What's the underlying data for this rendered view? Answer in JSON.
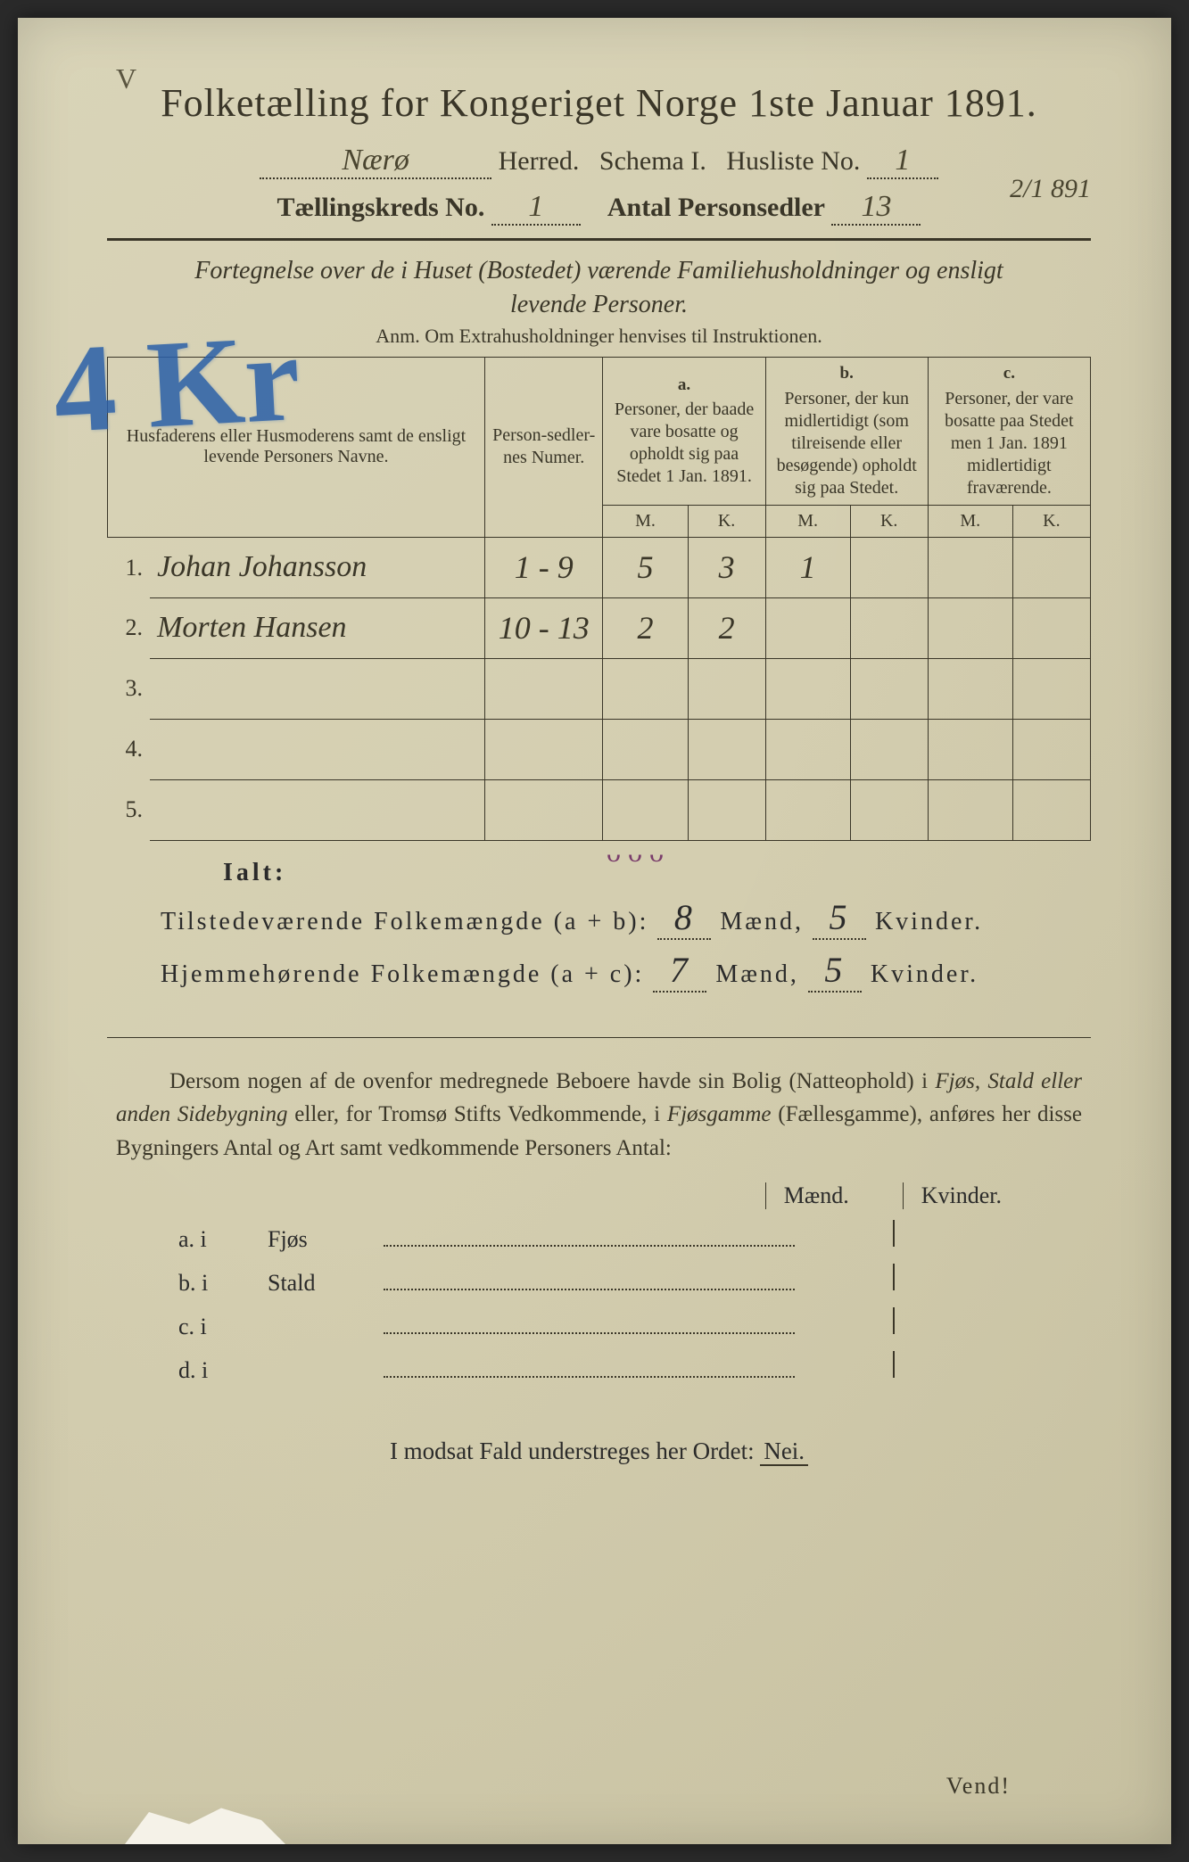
{
  "marks": {
    "v": "V",
    "blue": "4 Kr",
    "date_corner": "2/1 891",
    "purple_check": "ᴗ   ᴗ    ᴗ"
  },
  "header": {
    "title": "Folketælling for Kongeriget Norge 1ste Januar 1891.",
    "herred_value": "Nærø",
    "herred_label": "Herred.",
    "schema_label": "Schema I.",
    "husliste_label": "Husliste No.",
    "husliste_value": "1",
    "kreds_label": "Tællingskreds No.",
    "kreds_value": "1",
    "antal_label": "Antal Personsedler",
    "antal_value": "13"
  },
  "subtitle": {
    "line1": "Fortegnelse over de i Huset (Bostedet) værende Familiehusholdninger og ensligt",
    "line2": "levende Personer.",
    "anm": "Anm. Om Extrahusholdninger henvises til Instruktionen."
  },
  "table": {
    "head": {
      "name": "Husfaderens eller Husmoderens samt de ensligt levende Personers Navne.",
      "person_num": "Person-sedler-nes Numer.",
      "a_label": "a.",
      "a_text": "Personer, der baade vare bosatte og opholdt sig paa Stedet 1 Jan. 1891.",
      "b_label": "b.",
      "b_text": "Personer, der kun midlertidigt (som tilreisende eller besøgende) opholdt sig paa Stedet.",
      "c_label": "c.",
      "c_text": "Personer, der vare bosatte paa Stedet men 1 Jan. 1891 midlertidigt fraværende.",
      "m": "M.",
      "k": "K."
    },
    "rows": [
      {
        "n": "1.",
        "name": "Johan Johansson",
        "num": "1 - 9",
        "am": "5",
        "ak": "3",
        "bm": "1",
        "bk": "",
        "cm": "",
        "ck": ""
      },
      {
        "n": "2.",
        "name": "Morten Hansen",
        "num": "10 - 13",
        "am": "2",
        "ak": "2",
        "bm": "",
        "bk": "",
        "cm": "",
        "ck": ""
      },
      {
        "n": "3.",
        "name": "",
        "num": "",
        "am": "",
        "ak": "",
        "bm": "",
        "bk": "",
        "cm": "",
        "ck": ""
      },
      {
        "n": "4.",
        "name": "",
        "num": "",
        "am": "",
        "ak": "",
        "bm": "",
        "bk": "",
        "cm": "",
        "ck": ""
      },
      {
        "n": "5.",
        "name": "",
        "num": "",
        "am": "",
        "ak": "",
        "bm": "",
        "bk": "",
        "cm": "",
        "ck": ""
      }
    ]
  },
  "totals": {
    "ialt": "Ialt:",
    "line1_label": "Tilstedeværende Folkemængde (a + b):",
    "line1_m": "8",
    "line1_m_label": "Mænd,",
    "line1_k": "5",
    "line1_k_label": "Kvinder.",
    "line2_label": "Hjemmehørende Folkemængde (a + c):",
    "line2_m": "7",
    "line2_m_label": "Mænd,",
    "line2_k": "5",
    "line2_k_label": "Kvinder."
  },
  "paragraph": {
    "text_pre": "Dersom nogen af de ovenfor medregnede Beboere havde sin Bolig (Natteophold) i ",
    "em1": "Fjøs, Stald eller anden Sidebygning",
    "text_mid": " eller, for Tromsø Stifts Vedkommende, i ",
    "em2": "Fjøsgamme",
    "text_mid2": " (Fællesgamme), anføres her disse Bygningers Antal og Art samt vedkommende Personers Antal:"
  },
  "lower": {
    "maend": "Mænd.",
    "kvinder": "Kvinder.",
    "rows": [
      {
        "lbl": "a.  i",
        "typ": "Fjøs"
      },
      {
        "lbl": "b.  i",
        "typ": "Stald"
      },
      {
        "lbl": "c.  i",
        "typ": ""
      },
      {
        "lbl": "d.  i",
        "typ": ""
      }
    ]
  },
  "footer": {
    "nei_line_pre": "I modsat Fald understreges her Ordet: ",
    "nei": "Nei.",
    "vend": "Vend!"
  },
  "colors": {
    "paper": "#d4ceb0",
    "ink": "#3a3628",
    "blue_pencil": "#2a5fa8",
    "purple": "#7a3d6b",
    "handwriting": "#4a4530"
  }
}
